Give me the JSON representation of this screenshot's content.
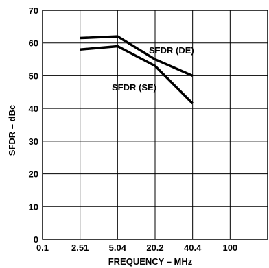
{
  "chart_data": {
    "type": "line",
    "title": "",
    "xlabel": "FREQUENCY – MHz",
    "ylabel": "SFDR – dBc",
    "x_scale": "categorical",
    "categories": [
      "0.1",
      "2.51",
      "5.04",
      "20.2",
      "40.4",
      "100"
    ],
    "ylim": [
      0,
      70
    ],
    "yticks": [
      "0",
      "10",
      "20",
      "30",
      "40",
      "50",
      "60",
      "70"
    ],
    "grid": true,
    "legend": "inline labels",
    "line_color": "#000000",
    "series": [
      {
        "name": "SFDR (DE)",
        "values": [
          null,
          61.5,
          62,
          55,
          50,
          null
        ]
      },
      {
        "name": "SFDR (SE)",
        "values": [
          null,
          58,
          59,
          53,
          41.5,
          null
        ]
      }
    ]
  }
}
